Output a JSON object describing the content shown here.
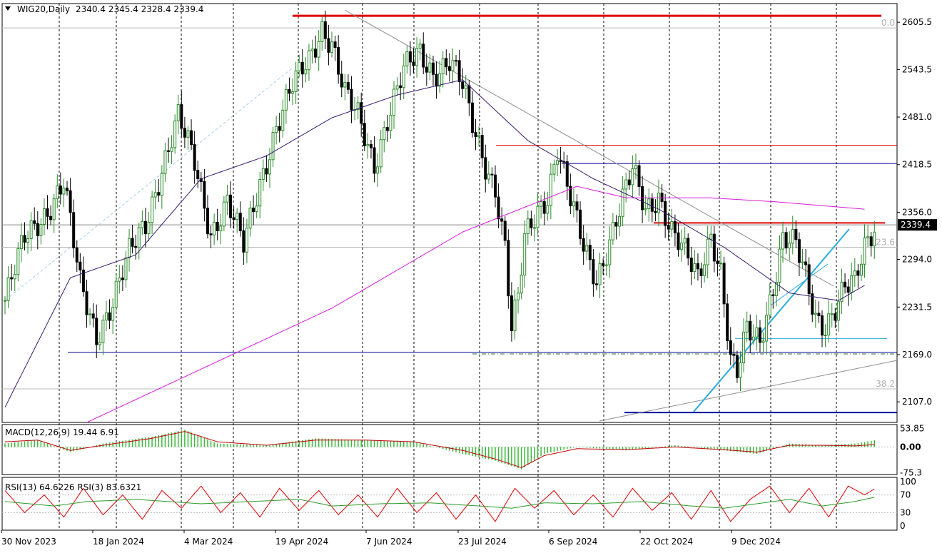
{
  "window": {
    "symbol_label": "WIG20,Daily",
    "ohlc": "2340.4 2345.4 2328.4 2339.4",
    "menu_icon": "triangle-down-icon"
  },
  "colors": {
    "bull": "#2a8a2a",
    "bear": "#000000",
    "resistance": "#e00000",
    "support": "#00009a",
    "trend": "#2aace0",
    "ma_short": "#3a1a6e",
    "ma_long": "#d81ad8",
    "macd_hist": "#3cb83c",
    "macd_signal": "#c00000",
    "rsi_fast": "#e00000",
    "rsi_slow": "#2a9a2a"
  },
  "chart_data": {
    "type": "candlestick",
    "title": "WIG20,Daily",
    "last_price": "2339.4",
    "y_range": [
      2080,
      2630
    ],
    "y_ticks": [
      "2605.5",
      "2543.5",
      "2481.0",
      "2418.5",
      "2356.0",
      "2294.0",
      "2231.5",
      "2169.0",
      "2107.0"
    ],
    "x_ticks": [
      "30 Nov 2023",
      "18 Jan 2024",
      "4 Mar 2024",
      "19 Apr 2024",
      "7 Jun 2024",
      "23 Jul 2024",
      "6 Sep 2024",
      "22 Oct 2024",
      "9 Dec 2024"
    ],
    "close_path": [
      [
        0,
        2240
      ],
      [
        6,
        2320
      ],
      [
        13,
        2360
      ],
      [
        18,
        2395
      ],
      [
        23,
        2260
      ],
      [
        28,
        2195
      ],
      [
        33,
        2240
      ],
      [
        38,
        2300
      ],
      [
        43,
        2340
      ],
      [
        48,
        2415
      ],
      [
        53,
        2480
      ],
      [
        58,
        2420
      ],
      [
        63,
        2330
      ],
      [
        68,
        2370
      ],
      [
        73,
        2310
      ],
      [
        78,
        2395
      ],
      [
        83,
        2470
      ],
      [
        88,
        2520
      ],
      [
        93,
        2555
      ],
      [
        97,
        2600
      ],
      [
        100,
        2580
      ],
      [
        104,
        2510
      ],
      [
        108,
        2480
      ],
      [
        113,
        2420
      ],
      [
        117,
        2480
      ],
      [
        122,
        2540
      ],
      [
        127,
        2565
      ],
      [
        131,
        2540
      ],
      [
        136,
        2555
      ],
      [
        140,
        2520
      ],
      [
        143,
        2470
      ],
      [
        147,
        2420
      ],
      [
        150,
        2390
      ],
      [
        153,
        2310
      ],
      [
        155,
        2200
      ],
      [
        157,
        2240
      ],
      [
        159,
        2320
      ],
      [
        163,
        2360
      ],
      [
        166,
        2380
      ],
      [
        169,
        2440
      ],
      [
        173,
        2370
      ],
      [
        177,
        2310
      ],
      [
        181,
        2270
      ],
      [
        185,
        2320
      ],
      [
        189,
        2370
      ],
      [
        192,
        2410
      ],
      [
        196,
        2360
      ],
      [
        200,
        2380
      ],
      [
        204,
        2330
      ],
      [
        208,
        2300
      ],
      [
        212,
        2270
      ],
      [
        216,
        2330
      ],
      [
        219,
        2280
      ],
      [
        222,
        2160
      ],
      [
        224,
        2140
      ],
      [
        227,
        2200
      ],
      [
        231,
        2190
      ],
      [
        235,
        2260
      ],
      [
        238,
        2320
      ],
      [
        242,
        2310
      ],
      [
        245,
        2270
      ],
      [
        248,
        2220
      ],
      [
        251,
        2210
      ],
      [
        254,
        2230
      ],
      [
        257,
        2255
      ],
      [
        260,
        2260
      ],
      [
        263,
        2310
      ],
      [
        265,
        2330
      ],
      [
        266,
        2339.4
      ]
    ],
    "moving_averages": [
      {
        "period": "short",
        "path": [
          [
            0,
            2100
          ],
          [
            20,
            2270
          ],
          [
            40,
            2300
          ],
          [
            60,
            2400
          ],
          [
            80,
            2430
          ],
          [
            100,
            2480
          ],
          [
            120,
            2510
          ],
          [
            140,
            2530
          ],
          [
            160,
            2450
          ],
          [
            180,
            2400
          ],
          [
            200,
            2360
          ],
          [
            220,
            2310
          ],
          [
            240,
            2250
          ],
          [
            255,
            2240
          ],
          [
            263,
            2260
          ]
        ]
      },
      {
        "period": "long",
        "path": [
          [
            25,
            2080
          ],
          [
            60,
            2150
          ],
          [
            100,
            2230
          ],
          [
            140,
            2330
          ],
          [
            175,
            2390
          ],
          [
            190,
            2375
          ],
          [
            215,
            2375
          ],
          [
            235,
            2370
          ],
          [
            263,
            2360
          ]
        ]
      }
    ],
    "levels": [
      {
        "name": "resistance-top",
        "price": 2614
      },
      {
        "name": "resistance-mid",
        "price": 2342
      },
      {
        "name": "resistance-thin",
        "price": 2444
      },
      {
        "name": "support-upper",
        "price": 2420
      },
      {
        "name": "support-lower",
        "price": 2172
      },
      {
        "name": "support-bottom",
        "price": 2093
      },
      {
        "name": "dashed-support",
        "price": 2170
      },
      {
        "name": "thin-support",
        "price": 2190
      }
    ],
    "fibonacci": [
      {
        "label": "0.0",
        "price": 2598
      },
      {
        "label": "23.6",
        "price": 2310
      },
      {
        "label": "38.2",
        "price": 2124
      }
    ],
    "macd": {
      "label": "MACD(12,26,9) 19.44 6.91",
      "ticks": [
        "53.85",
        "0.00",
        "-75.3"
      ],
      "y_range": [
        -80,
        65
      ],
      "hist": [
        [
          0,
          10
        ],
        [
          10,
          20
        ],
        [
          20,
          -15
        ],
        [
          30,
          10
        ],
        [
          45,
          30
        ],
        [
          55,
          50
        ],
        [
          65,
          10
        ],
        [
          80,
          5
        ],
        [
          95,
          25
        ],
        [
          110,
          20
        ],
        [
          125,
          15
        ],
        [
          140,
          -20
        ],
        [
          150,
          -40
        ],
        [
          158,
          -65
        ],
        [
          165,
          -20
        ],
        [
          175,
          0
        ],
        [
          190,
          -10
        ],
        [
          205,
          5
        ],
        [
          220,
          -10
        ],
        [
          230,
          -20
        ],
        [
          240,
          10
        ],
        [
          250,
          5
        ],
        [
          260,
          10
        ],
        [
          266,
          19.44
        ]
      ],
      "signal": [
        [
          0,
          15
        ],
        [
          10,
          20
        ],
        [
          20,
          -10
        ],
        [
          30,
          5
        ],
        [
          45,
          25
        ],
        [
          55,
          45
        ],
        [
          65,
          15
        ],
        [
          80,
          5
        ],
        [
          95,
          20
        ],
        [
          110,
          20
        ],
        [
          125,
          15
        ],
        [
          140,
          -10
        ],
        [
          150,
          -35
        ],
        [
          158,
          -60
        ],
        [
          165,
          -25
        ],
        [
          175,
          -5
        ],
        [
          190,
          -8
        ],
        [
          205,
          0
        ],
        [
          220,
          -8
        ],
        [
          230,
          -15
        ],
        [
          240,
          5
        ],
        [
          250,
          5
        ],
        [
          260,
          3
        ],
        [
          266,
          6.91
        ]
      ]
    },
    "rsi": {
      "label": "RSI(13) 64.6226  RSI(3) 83.6321",
      "ticks": [
        "100",
        "70",
        "30",
        "0"
      ],
      "y_range": [
        0,
        100
      ],
      "rsi13": [
        [
          0,
          55
        ],
        [
          15,
          45
        ],
        [
          25,
          55
        ],
        [
          40,
          60
        ],
        [
          50,
          55
        ],
        [
          60,
          50
        ],
        [
          75,
          55
        ],
        [
          90,
          60
        ],
        [
          100,
          45
        ],
        [
          115,
          50
        ],
        [
          130,
          52
        ],
        [
          145,
          45
        ],
        [
          155,
          40
        ],
        [
          165,
          52
        ],
        [
          180,
          50
        ],
        [
          195,
          55
        ],
        [
          210,
          45
        ],
        [
          220,
          40
        ],
        [
          230,
          50
        ],
        [
          240,
          60
        ],
        [
          250,
          45
        ],
        [
          260,
          55
        ],
        [
          266,
          64.6226
        ]
      ],
      "rsi3": [
        [
          0,
          80
        ],
        [
          6,
          30
        ],
        [
          12,
          70
        ],
        [
          18,
          20
        ],
        [
          24,
          85
        ],
        [
          30,
          25
        ],
        [
          36,
          70
        ],
        [
          42,
          15
        ],
        [
          48,
          80
        ],
        [
          54,
          40
        ],
        [
          60,
          90
        ],
        [
          66,
          30
        ],
        [
          72,
          75
        ],
        [
          78,
          20
        ],
        [
          84,
          85
        ],
        [
          90,
          35
        ],
        [
          96,
          80
        ],
        [
          102,
          25
        ],
        [
          108,
          70
        ],
        [
          114,
          20
        ],
        [
          120,
          85
        ],
        [
          126,
          30
        ],
        [
          132,
          75
        ],
        [
          138,
          15
        ],
        [
          144,
          70
        ],
        [
          150,
          10
        ],
        [
          156,
          85
        ],
        [
          162,
          40
        ],
        [
          168,
          80
        ],
        [
          174,
          25
        ],
        [
          180,
          70
        ],
        [
          186,
          20
        ],
        [
          192,
          85
        ],
        [
          198,
          35
        ],
        [
          204,
          75
        ],
        [
          210,
          15
        ],
        [
          216,
          80
        ],
        [
          222,
          10
        ],
        [
          228,
          60
        ],
        [
          234,
          90
        ],
        [
          240,
          30
        ],
        [
          246,
          85
        ],
        [
          252,
          20
        ],
        [
          258,
          90
        ],
        [
          263,
          70
        ],
        [
          266,
          83.6321
        ]
      ]
    }
  }
}
